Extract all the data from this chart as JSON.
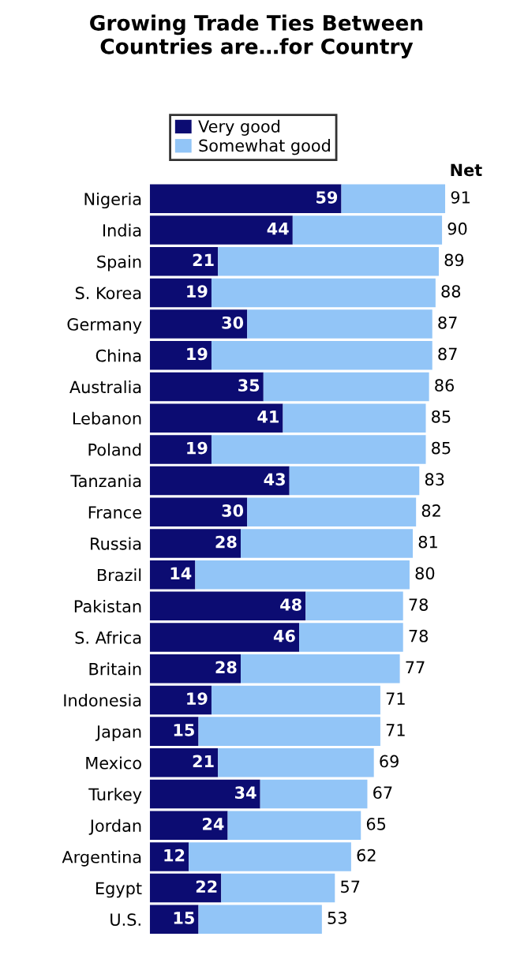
{
  "chart_data": {
    "type": "bar",
    "orientation": "horizontal",
    "stacked": true,
    "title": "Growing Trade Ties Between\nCountries are…for Country",
    "categories": [
      "Nigeria",
      "India",
      "Spain",
      "S. Korea",
      "Germany",
      "China",
      "Australia",
      "Lebanon",
      "Poland",
      "Tanzania",
      "France",
      "Russia",
      "Brazil",
      "Pakistan",
      "S. Africa",
      "Britain",
      "Indonesia",
      "Japan",
      "Mexico",
      "Turkey",
      "Jordan",
      "Argentina",
      "Egypt",
      "U.S."
    ],
    "series": [
      {
        "name": "Very good",
        "color": "#0c0c72",
        "values": [
          59,
          44,
          21,
          19,
          30,
          19,
          35,
          41,
          19,
          43,
          30,
          28,
          14,
          48,
          46,
          28,
          19,
          15,
          21,
          34,
          24,
          12,
          22,
          15
        ],
        "value_labels": [
          "59",
          "44",
          "21",
          "19",
          "30",
          "19",
          "35",
          "41",
          "19",
          "43",
          "30",
          "28",
          "14",
          "48",
          "46",
          "28",
          "19",
          "15",
          "21",
          "34",
          "24",
          "12",
          "22",
          "15"
        ]
      },
      {
        "name": "Somewhat good",
        "color": "#92c5f7",
        "values": [
          32,
          46,
          68,
          69,
          57,
          68,
          51,
          44,
          66,
          40,
          52,
          53,
          66,
          30,
          32,
          49,
          52,
          56,
          48,
          33,
          41,
          50,
          35,
          38
        ]
      }
    ],
    "totals": [
      "91",
      "90",
      "89",
      "88",
      "87",
      "87",
      "86",
      "85",
      "85",
      "83",
      "82",
      "81",
      "80",
      "78",
      "78",
      "77",
      "71",
      "71",
      "69",
      "67",
      "65",
      "62",
      "57",
      "53"
    ],
    "annotations": [
      "Net"
    ],
    "xlim": [
      0,
      91
    ],
    "tick_labels": "y",
    "legend": "top",
    "grid": false
  }
}
